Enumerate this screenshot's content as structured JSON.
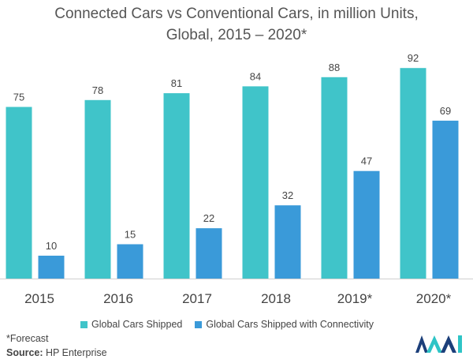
{
  "chart_data": {
    "type": "bar",
    "title_lines": [
      "Connected Cars vs Conventional Cars, in million Units,",
      "Global, 2015 – 2020*"
    ],
    "categories": [
      "2015",
      "2016",
      "2017",
      "2018",
      "2019*",
      "2020*"
    ],
    "series": [
      {
        "name": "Global Cars Shipped",
        "color": "#40c4c9",
        "values": [
          75,
          78,
          81,
          84,
          88,
          92
        ]
      },
      {
        "name": "Global Cars Shipped with Connectivity",
        "color": "#3a9ad9",
        "values": [
          10,
          15,
          22,
          32,
          47,
          69
        ]
      }
    ],
    "xlabel": "",
    "ylabel": "",
    "ylim": [
      0,
      100
    ],
    "grid": false,
    "legend_position": "bottom"
  },
  "footnote": {
    "forecast": "*Forecast",
    "source_label": "Source:",
    "source_value": "HP Enterprise"
  },
  "logo": {
    "icon": "mordor-logo-icon",
    "colors": [
      "#1c3f7a",
      "#2ec4c6"
    ]
  }
}
